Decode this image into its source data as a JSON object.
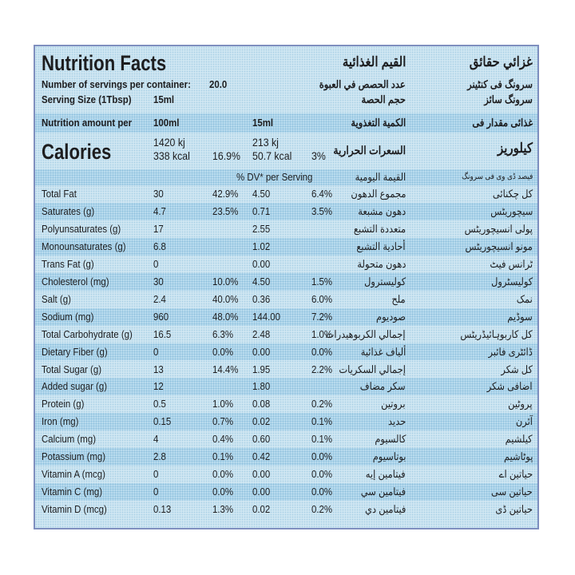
{
  "header": {
    "title_en": "Nutrition Facts",
    "title_ar": "القيم الغذائية",
    "title_ur": "غزائي حقائق"
  },
  "servings": {
    "per_container_label": "Number of servings per container:",
    "per_container_value": "20.0",
    "per_container_ar": "عدد الحصص في العبوة",
    "per_container_ur": "سرونگ فی کنٹینر",
    "size_label": "Serving Size (1Tbsp)",
    "size_value": "15ml",
    "size_ar": "حجم الحصة",
    "size_ur": "سرونگ سائز"
  },
  "amount_per": {
    "label": "Nutrition amount per",
    "col1": "100ml",
    "col2": "15ml",
    "ar": "الكمية التغذوية",
    "ur": "غذائی مقدار فی"
  },
  "calories": {
    "label": "Calories",
    "kj_100": "1420 kj",
    "kcal_100": "338  kcal",
    "dv_100": "16.9%",
    "kj_serv": "213 kj",
    "kcal_serv": "50.7 kcal",
    "dv_serv": "3%",
    "ar": "السعرات الحرارية",
    "ur": "کیلوریز"
  },
  "dv_header": {
    "label": "% DV* per Serving",
    "ar": "القيمة اليومية",
    "ur": "فیصد ڈی وی فی سرونگ"
  },
  "nutrients": [
    {
      "name": "Total Fat",
      "v100": "30",
      "dv100": "42.9%",
      "vs": "4.50",
      "dvs": "6.4%",
      "ar": "مجموع الدهون",
      "ur": "کل چکنائی"
    },
    {
      "name": "Saturates (g)",
      "v100": "4.7",
      "dv100": "23.5%",
      "vs": "0.71",
      "dvs": "3.5%",
      "ar": "دهون مشبعة",
      "ur": "سیچوریٹس"
    },
    {
      "name": "Polyunsaturates (g)",
      "v100": "17",
      "dv100": "",
      "vs": "2.55",
      "dvs": "",
      "ar": "متعددة التشبع",
      "ur": "پولی انسیچوریٹس"
    },
    {
      "name": "Monounsaturates (g)",
      "v100": "6.8",
      "dv100": "",
      "vs": "1.02",
      "dvs": "",
      "ar": "أحادية التشبع",
      "ur": "مونو انسیچوریٹس"
    },
    {
      "name": "Trans Fat (g)",
      "v100": "0",
      "dv100": "",
      "vs": "0.00",
      "dvs": "",
      "ar": "دهون متحولة",
      "ur": "ٹرانس فیٹ"
    },
    {
      "name": "Cholesterol (mg)",
      "v100": "30",
      "dv100": "10.0%",
      "vs": "4.50",
      "dvs": "1.5%",
      "ar": "كوليسترول",
      "ur": "کولیسٹرول"
    },
    {
      "name": "Salt (g)",
      "v100": "2.4",
      "dv100": "40.0%",
      "vs": "0.36",
      "dvs": "6.0%",
      "ar": "ملح",
      "ur": "نمک"
    },
    {
      "name": "Sodium (mg)",
      "v100": "960",
      "dv100": "48.0%",
      "vs": "144.00",
      "dvs": "7.2%",
      "ar": "صوديوم",
      "ur": "سوڈیم"
    },
    {
      "name": "Total Carbohydrate (g)",
      "v100": "16.5",
      "dv100": "6.3%",
      "vs": "2.48",
      "dvs": "1.0%",
      "ar": "إجمالي الكربوهيدرات",
      "ur": "کل کاربوہائیڈریٹس"
    },
    {
      "name": "Dietary Fiber (g)",
      "v100": "0",
      "dv100": "0.0%",
      "vs": "0.00",
      "dvs": "0.0%",
      "ar": "ألياف غذائية",
      "ur": "ڈائٹری فائبر"
    },
    {
      "name": "Total Sugar (g)",
      "v100": "13",
      "dv100": "14.4%",
      "vs": "1.95",
      "dvs": "2.2%",
      "ar": "إجمالي السكريات",
      "ur": "کل شکر"
    },
    {
      "name": "Added sugar (g)",
      "v100": "12",
      "dv100": "",
      "vs": "1.80",
      "dvs": "",
      "ar": "سكر مضاف",
      "ur": "اضافی شکر"
    },
    {
      "name": "Protein (g)",
      "v100": "0.5",
      "dv100": "1.0%",
      "vs": "0.08",
      "dvs": "0.2%",
      "ar": "بروتين",
      "ur": "پروٹین"
    },
    {
      "name": "Iron (mg)",
      "v100": "0.15",
      "dv100": "0.7%",
      "vs": "0.02",
      "dvs": "0.1%",
      "ar": "حديد",
      "ur": "آئرن"
    },
    {
      "name": "Calcium (mg)",
      "v100": "4",
      "dv100": "0.4%",
      "vs": "0.60",
      "dvs": "0.1%",
      "ar": "كالسيوم",
      "ur": "کیلشیم"
    },
    {
      "name": "Potassium (mg)",
      "v100": "2.8",
      "dv100": "0.1%",
      "vs": "0.42",
      "dvs": "0.0%",
      "ar": "بوتاسيوم",
      "ur": "پوٹاشیم"
    },
    {
      "name": "Vitamin A (mcg)",
      "v100": "0",
      "dv100": "0.0%",
      "vs": "0.00",
      "dvs": "0.0%",
      "ar": "فيتامين إيه",
      "ur": "حیاتین اے"
    },
    {
      "name": "Vitamin C  (mg)",
      "v100": "0",
      "dv100": "0.0%",
      "vs": "0.00",
      "dvs": "0.0%",
      "ar": "فيتامين سي",
      "ur": "حیاتین سی"
    },
    {
      "name": "Vitamin D  (mcg)",
      "v100": "0.13",
      "dv100": "1.3%",
      "vs": "0.02",
      "dvs": "0.2%",
      "ar": "فيتامين دي",
      "ur": "حیاتین ڈی"
    }
  ],
  "colors": {
    "background": "#cfe6f2",
    "band": "#b8dbee",
    "border": "#7f8fbf",
    "text": "#1d1d1f"
  }
}
